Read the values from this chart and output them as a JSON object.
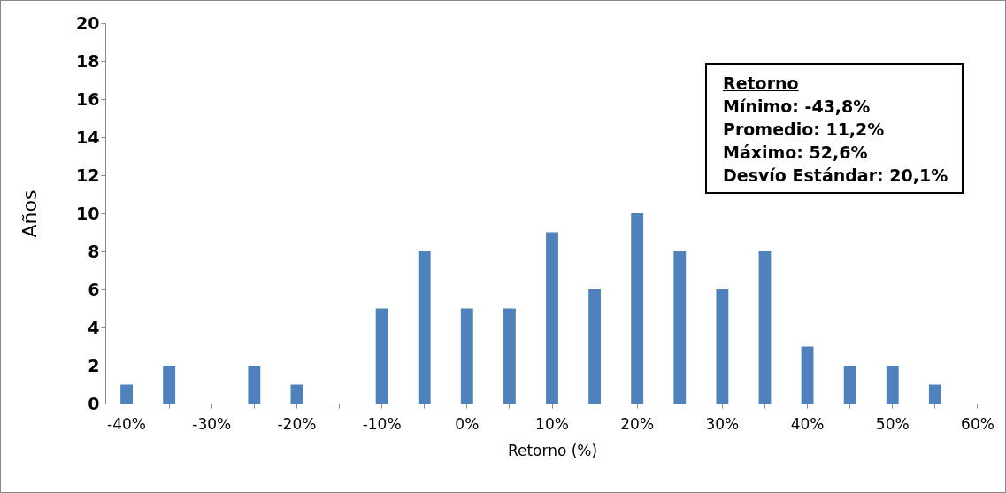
{
  "chart_data": {
    "type": "bar",
    "xlabel": "Retorno (%)",
    "ylabel": "Años",
    "categories": [
      "-40%",
      null,
      "-30%",
      null,
      "-20%",
      null,
      "-10%",
      null,
      "0%",
      null,
      "10%",
      null,
      "20%",
      null,
      "30%",
      null,
      "40%",
      null,
      "50%",
      null,
      "60%"
    ],
    "values": [
      1,
      2,
      0,
      2,
      1,
      0,
      5,
      8,
      5,
      5,
      9,
      6,
      10,
      8,
      6,
      8,
      3,
      2,
      2,
      1,
      0
    ],
    "color": "#4f81bd",
    "ylim": [
      0,
      20
    ],
    "yticks": [
      0,
      2,
      4,
      6,
      8,
      10,
      12,
      14,
      16,
      18,
      20
    ],
    "grid": false,
    "annotations": [
      "Retorno",
      "Mínimo: -43,8%",
      "Promedio: 11,2%",
      "Máximo: 52,6%",
      "Desvío Estándar: 20,1%"
    ]
  }
}
